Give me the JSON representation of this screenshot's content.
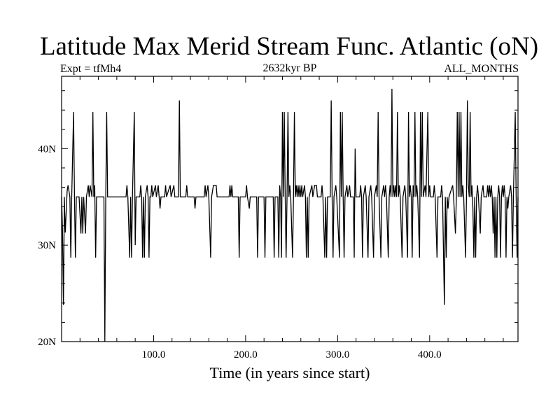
{
  "header": {
    "title": "Latitude Max Merid Stream Func. Atlantic (oN)",
    "left_label": "Expt = tfMh4",
    "center_label": "2632kyr BP",
    "right_label": "ALL_MONTHS"
  },
  "chart_data": {
    "type": "line",
    "title": "Latitude Max Merid Stream Func. Atlantic (oN)",
    "xlabel": "Time (in years since start)",
    "ylabel": "",
    "xlim": [
      0,
      496
    ],
    "ylim": [
      20,
      47.5
    ],
    "x_ticks": [
      {
        "value": 100,
        "label": "100.0"
      },
      {
        "value": 200,
        "label": "200.0"
      },
      {
        "value": 300,
        "label": "300.0"
      },
      {
        "value": 400,
        "label": "400.0"
      }
    ],
    "y_ticks": [
      {
        "value": 20,
        "label": "20N"
      },
      {
        "value": 30,
        "label": "30N"
      },
      {
        "value": 40,
        "label": "40N"
      }
    ],
    "grid": false,
    "series": [
      {
        "values": [
          [
            0,
            35
          ],
          [
            1,
            31.5
          ],
          [
            2,
            23.8
          ],
          [
            3,
            35
          ],
          [
            4,
            31.3
          ],
          [
            6,
            35.6
          ],
          [
            7,
            36.2
          ],
          [
            9,
            35
          ],
          [
            10,
            28.7
          ],
          [
            11,
            35
          ],
          [
            13,
            43.8
          ],
          [
            14,
            35
          ],
          [
            15,
            28.7
          ],
          [
            16,
            35
          ],
          [
            19,
            35
          ],
          [
            21,
            31.2
          ],
          [
            22,
            35
          ],
          [
            23,
            31.2
          ],
          [
            24,
            35
          ],
          [
            26,
            31.2
          ],
          [
            27,
            35
          ],
          [
            29,
            36.2
          ],
          [
            30,
            35
          ],
          [
            31,
            36.2
          ],
          [
            33,
            35
          ],
          [
            34,
            43.8
          ],
          [
            35,
            35
          ],
          [
            36,
            36.2
          ],
          [
            37,
            28.7
          ],
          [
            38,
            35
          ],
          [
            46,
            35
          ],
          [
            47,
            20
          ],
          [
            48,
            35
          ],
          [
            49,
            43.8
          ],
          [
            50,
            35
          ],
          [
            70,
            35
          ],
          [
            71,
            36.2
          ],
          [
            72,
            35
          ],
          [
            74,
            28.7
          ],
          [
            75,
            35
          ],
          [
            76,
            28.7
          ],
          [
            77,
            35
          ],
          [
            79,
            43.8
          ],
          [
            80,
            30
          ],
          [
            81,
            35
          ],
          [
            85,
            35
          ],
          [
            86,
            36.2
          ],
          [
            87,
            35
          ],
          [
            88,
            28.7
          ],
          [
            89,
            35
          ],
          [
            90,
            28.7
          ],
          [
            91,
            35
          ],
          [
            93,
            36.2
          ],
          [
            94,
            35
          ],
          [
            95,
            28.7
          ],
          [
            96,
            35
          ],
          [
            97,
            35
          ],
          [
            98,
            36.2
          ],
          [
            99,
            35
          ],
          [
            102,
            36.2
          ],
          [
            103,
            35
          ],
          [
            105,
            36.2
          ],
          [
            106,
            35
          ],
          [
            107,
            33.8
          ],
          [
            108,
            35
          ],
          [
            112,
            35
          ],
          [
            113,
            36.2
          ],
          [
            114,
            35
          ],
          [
            118,
            36.2
          ],
          [
            119,
            35
          ],
          [
            122,
            36.2
          ],
          [
            123,
            35
          ],
          [
            127,
            35
          ],
          [
            128,
            45
          ],
          [
            129,
            35
          ],
          [
            135,
            35
          ],
          [
            136,
            36.2
          ],
          [
            137,
            35
          ],
          [
            144,
            35
          ],
          [
            145,
            33.8
          ],
          [
            146,
            35
          ],
          [
            155,
            35
          ],
          [
            156,
            36.2
          ],
          [
            157,
            35
          ],
          [
            159,
            36.2
          ],
          [
            160,
            35
          ],
          [
            162,
            28.7
          ],
          [
            163,
            35
          ],
          [
            165,
            36.2
          ],
          [
            168,
            36.2
          ],
          [
            169,
            35
          ],
          [
            182,
            35
          ],
          [
            183,
            36.2
          ],
          [
            184,
            35
          ],
          [
            185,
            36.2
          ],
          [
            186,
            35
          ],
          [
            192,
            35
          ],
          [
            193,
            28.7
          ],
          [
            194,
            35
          ],
          [
            200,
            35
          ],
          [
            201,
            36.2
          ],
          [
            202,
            35
          ],
          [
            204,
            33.8
          ],
          [
            205,
            35
          ],
          [
            212,
            35
          ],
          [
            213,
            28.7
          ],
          [
            214,
            35
          ],
          [
            220,
            35
          ],
          [
            221,
            28.7
          ],
          [
            222,
            35
          ],
          [
            230,
            35
          ],
          [
            231,
            28.7
          ],
          [
            232,
            35
          ],
          [
            235,
            35
          ],
          [
            236,
            28.7
          ],
          [
            237,
            36.2
          ],
          [
            238,
            35
          ],
          [
            239,
            28.7
          ],
          [
            240,
            43.8
          ],
          [
            241,
            35
          ],
          [
            242,
            43.8
          ],
          [
            243,
            35
          ],
          [
            244,
            28.7
          ],
          [
            245,
            35
          ],
          [
            246,
            43.8
          ],
          [
            247,
            35
          ],
          [
            248,
            36.2
          ],
          [
            249,
            35
          ],
          [
            251,
            28.7
          ],
          [
            252,
            35
          ],
          [
            253,
            43.8
          ],
          [
            254,
            35
          ],
          [
            255,
            36.2
          ],
          [
            256,
            35
          ],
          [
            257,
            36.2
          ],
          [
            258,
            35
          ],
          [
            259,
            36.2
          ],
          [
            260,
            35
          ],
          [
            261,
            36.2
          ],
          [
            262,
            35
          ],
          [
            264,
            36.2
          ],
          [
            265,
            35
          ],
          [
            266,
            28.7
          ],
          [
            267,
            35
          ],
          [
            268,
            28.7
          ],
          [
            269,
            35
          ],
          [
            272,
            36.2
          ],
          [
            273,
            35
          ],
          [
            275,
            36.2
          ],
          [
            277,
            36.2
          ],
          [
            278,
            35
          ],
          [
            282,
            35
          ],
          [
            283,
            36.2
          ],
          [
            284,
            35
          ],
          [
            286,
            28.7
          ],
          [
            287,
            35
          ],
          [
            288,
            28.7
          ],
          [
            289,
            35
          ],
          [
            292,
            35
          ],
          [
            293,
            45
          ],
          [
            294,
            35
          ],
          [
            295,
            28.7
          ],
          [
            296,
            35
          ],
          [
            298,
            36.2
          ],
          [
            299,
            35
          ],
          [
            302,
            28.7
          ],
          [
            303,
            43.8
          ],
          [
            304,
            35
          ],
          [
            305,
            43.8
          ],
          [
            306,
            35
          ],
          [
            307,
            28.7
          ],
          [
            308,
            35
          ],
          [
            310,
            36.2
          ],
          [
            311,
            35
          ],
          [
            313,
            36.2
          ],
          [
            314,
            35
          ],
          [
            317,
            35
          ],
          [
            318,
            28.7
          ],
          [
            319,
            40
          ],
          [
            320,
            35
          ],
          [
            324,
            35
          ],
          [
            325,
            36.2
          ],
          [
            326,
            35
          ],
          [
            327,
            28.7
          ],
          [
            328,
            35
          ],
          [
            330,
            36.2
          ],
          [
            331,
            35
          ],
          [
            333,
            28.7
          ],
          [
            334,
            35
          ],
          [
            336,
            36.2
          ],
          [
            337,
            35
          ],
          [
            339,
            28.7
          ],
          [
            340,
            35
          ],
          [
            342,
            36.2
          ],
          [
            343,
            35
          ],
          [
            344,
            43.8
          ],
          [
            345,
            35
          ],
          [
            347,
            28.7
          ],
          [
            348,
            35
          ],
          [
            350,
            36.2
          ],
          [
            351,
            35
          ],
          [
            352,
            36.2
          ],
          [
            353,
            35
          ],
          [
            355,
            28.7
          ],
          [
            356,
            35
          ],
          [
            357,
            36.2
          ],
          [
            358,
            35
          ],
          [
            359,
            46.2
          ],
          [
            360,
            35
          ],
          [
            361,
            36.2
          ],
          [
            362,
            35
          ],
          [
            363,
            36.2
          ],
          [
            364,
            35
          ],
          [
            365,
            43.8
          ],
          [
            366,
            35
          ],
          [
            367,
            36.2
          ],
          [
            368,
            35
          ],
          [
            370,
            28.7
          ],
          [
            371,
            35
          ],
          [
            373,
            36.2
          ],
          [
            374,
            35
          ],
          [
            376,
            28.7
          ],
          [
            377,
            43.8
          ],
          [
            378,
            35
          ],
          [
            379,
            36.2
          ],
          [
            380,
            35
          ],
          [
            381,
            28.7
          ],
          [
            382,
            36.2
          ],
          [
            383,
            35
          ],
          [
            384,
            43.8
          ],
          [
            385,
            35
          ],
          [
            386,
            36.2
          ],
          [
            387,
            35
          ],
          [
            389,
            28.7
          ],
          [
            390,
            43.8
          ],
          [
            391,
            35
          ],
          [
            392,
            43.8
          ],
          [
            393,
            35
          ],
          [
            395,
            36.2
          ],
          [
            396,
            35
          ],
          [
            398,
            43.8
          ],
          [
            399,
            35
          ],
          [
            400,
            36.2
          ],
          [
            401,
            35
          ],
          [
            404,
            35
          ],
          [
            405,
            36.2
          ],
          [
            406,
            35
          ],
          [
            408,
            28.7
          ],
          [
            409,
            35
          ],
          [
            412,
            35
          ],
          [
            413,
            36.2
          ],
          [
            414,
            35
          ],
          [
            416,
            23.8
          ],
          [
            417,
            35
          ],
          [
            418,
            28.7
          ],
          [
            419,
            35
          ],
          [
            420,
            33.8
          ],
          [
            421,
            35
          ],
          [
            425,
            36.2
          ],
          [
            426,
            35
          ],
          [
            428,
            31.2
          ],
          [
            429,
            35
          ],
          [
            430,
            43.8
          ],
          [
            431,
            35
          ],
          [
            432,
            43.8
          ],
          [
            433,
            35
          ],
          [
            434,
            43.8
          ],
          [
            435,
            35
          ],
          [
            436,
            36.2
          ],
          [
            437,
            35
          ],
          [
            439,
            28.7
          ],
          [
            440,
            35
          ],
          [
            441,
            45
          ],
          [
            442,
            36.2
          ],
          [
            443,
            35
          ],
          [
            444,
            43.8
          ],
          [
            445,
            35
          ],
          [
            446,
            36.2
          ],
          [
            447,
            33.8
          ],
          [
            448,
            28.7
          ],
          [
            449,
            35
          ],
          [
            450,
            28.7
          ],
          [
            451,
            35
          ],
          [
            452,
            36.2
          ],
          [
            453,
            35
          ],
          [
            455,
            31.2
          ],
          [
            456,
            35
          ],
          [
            458,
            36.2
          ],
          [
            459,
            35
          ],
          [
            462,
            35
          ],
          [
            463,
            36.2
          ],
          [
            464,
            35
          ],
          [
            465,
            36.2
          ],
          [
            466,
            35
          ],
          [
            467,
            36.2
          ],
          [
            468,
            35
          ],
          [
            469,
            31.2
          ],
          [
            470,
            35
          ],
          [
            471,
            28.7
          ],
          [
            472,
            35
          ],
          [
            473,
            28.7
          ],
          [
            474,
            35
          ],
          [
            475,
            36.2
          ],
          [
            476,
            35
          ],
          [
            477,
            28.7
          ],
          [
            478,
            35
          ],
          [
            479,
            36.2
          ],
          [
            480,
            35
          ],
          [
            481,
            36.2
          ],
          [
            482,
            35
          ],
          [
            483,
            28.7
          ],
          [
            484,
            35
          ],
          [
            485,
            33.8
          ],
          [
            486,
            35
          ],
          [
            488,
            36.2
          ],
          [
            489,
            35
          ],
          [
            490,
            28.7
          ],
          [
            491,
            35
          ],
          [
            493,
            43.8
          ],
          [
            494,
            35
          ],
          [
            495,
            28.7
          ],
          [
            496,
            35
          ]
        ]
      }
    ]
  }
}
